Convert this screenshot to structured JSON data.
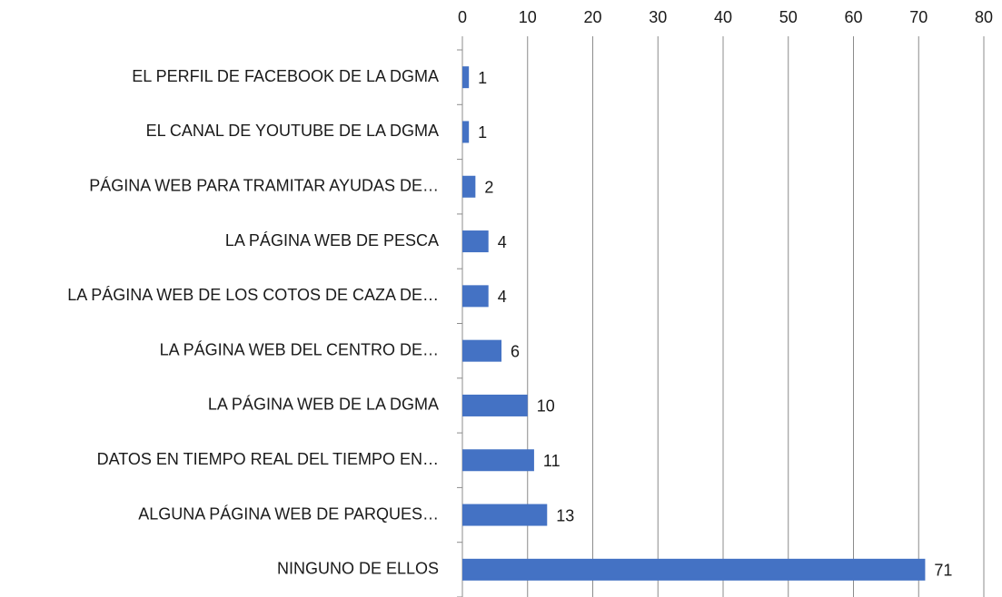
{
  "chart_data": {
    "type": "barh",
    "categories": [
      "EL PERFIL DE FACEBOOK DE LA DGMA",
      "EL CANAL DE YOUTUBE DE LA DGMA",
      "PÁGINA WEB PARA TRAMITAR AYUDAS DE…",
      "LA PÁGINA WEB DE PESCA",
      "LA PÁGINA WEB DE LOS COTOS DE CAZA DE…",
      "LA PÁGINA WEB DEL CENTRO DE…",
      "LA PÁGINA WEB DE LA DGMA",
      "DATOS EN TIEMPO REAL DEL TIEMPO EN…",
      "ALGUNA PÁGINA WEB DE PARQUES…",
      "NINGUNO DE ELLOS"
    ],
    "values": [
      1,
      1,
      2,
      4,
      4,
      6,
      10,
      11,
      13,
      71
    ],
    "color": "#4472c4",
    "xlim": [
      0,
      80
    ],
    "xticks": [
      0,
      10,
      20,
      30,
      40,
      50,
      60,
      70,
      80
    ],
    "grid": true
  }
}
